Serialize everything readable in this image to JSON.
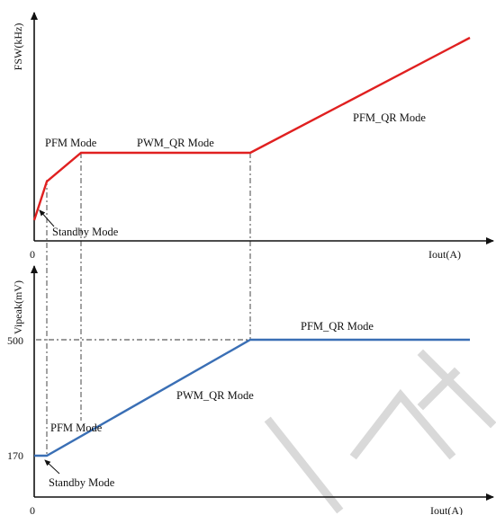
{
  "colors": {
    "top_curve": "#e02020",
    "bottom_curve": "#3a6fb5",
    "axis": "#111111",
    "guide": "#333333"
  },
  "top_chart": {
    "y_axis_label": "FSW(kHz)",
    "x_axis_label": "Iout(A)",
    "origin_label": "0",
    "mode_labels": {
      "pfm": "PFM Mode",
      "pwm_qr": "PWM_QR Mode",
      "pfm_qr": "PFM_QR Mode",
      "standby": "Standby Mode"
    }
  },
  "bottom_chart": {
    "y_axis_label": "Vipeak(mV)",
    "x_axis_label": "Iout(A)",
    "origin_label": "0",
    "y_ticks": [
      "500",
      "170"
    ],
    "mode_labels": {
      "pfm_qr": "PFM_QR Mode",
      "pwm_qr": "PWM_QR Mode",
      "pfm": "PFM Mode",
      "standby": "Standby Mode"
    }
  }
}
